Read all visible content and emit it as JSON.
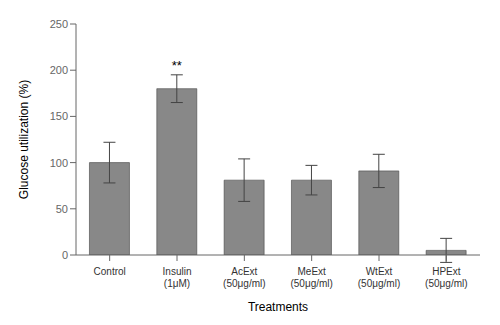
{
  "chart_data": {
    "type": "bar",
    "categories": [
      "Control",
      "Insulin (1μM)",
      "AcExt (50μg/ml)",
      "MeExt (50μg/ml)",
      "WtExt (50μg/ml)",
      "HPExt (50μg/ml)"
    ],
    "values": [
      100,
      180,
      81,
      81,
      91,
      5
    ],
    "errors": [
      22,
      15,
      23,
      16,
      18,
      13
    ],
    "color": "#888888",
    "xlabel": "Treatments",
    "ylabel": "Glucose utilization (%)",
    "ylim": [
      0,
      250
    ],
    "yticks": [
      0,
      50,
      100,
      150,
      200,
      250
    ],
    "annotations": [
      {
        "text": "**",
        "category": "Insulin (1μM)"
      }
    ],
    "grid": false
  }
}
